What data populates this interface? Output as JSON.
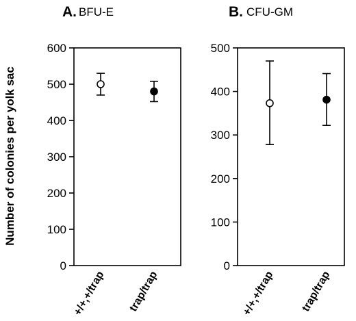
{
  "figure": {
    "ylabel": "Number of colonies per yolk sac"
  },
  "chart_data": [
    {
      "type": "scatter",
      "panel_letter": "A.",
      "panel_name": "BFU-E",
      "categories": [
        "+/+,+/trap",
        "trap/trap"
      ],
      "ylim": [
        0,
        600
      ],
      "yticks": [
        0,
        100,
        200,
        300,
        400,
        500,
        600
      ],
      "series": [
        {
          "values": [
            500,
            480
          ],
          "error_low": [
            470,
            452
          ],
          "error_high": [
            530,
            508
          ],
          "markers": [
            "open-circle",
            "filled-circle"
          ]
        }
      ],
      "grid": false
    },
    {
      "type": "scatter",
      "panel_letter": "B.",
      "panel_name": "CFU-GM",
      "categories": [
        "+/+,+/trap",
        "trap/trap"
      ],
      "ylim": [
        0,
        500
      ],
      "yticks": [
        0,
        100,
        200,
        300,
        400,
        500
      ],
      "series": [
        {
          "values": [
            373,
            381
          ],
          "error_low": [
            278,
            322
          ],
          "error_high": [
            470,
            441
          ],
          "markers": [
            "open-circle",
            "filled-circle"
          ]
        }
      ],
      "grid": false
    }
  ]
}
